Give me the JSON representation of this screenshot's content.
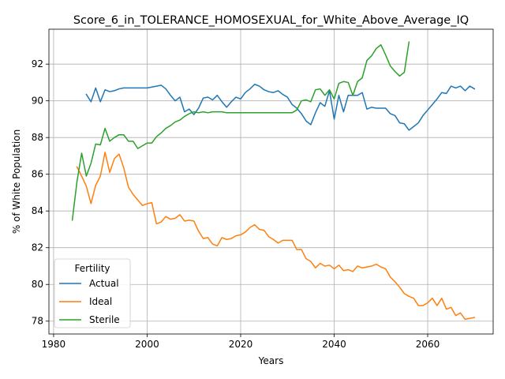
{
  "chart_data": {
    "type": "line",
    "title": "Score_6_in_TOLERANCE_HOMOSEXUAL_for_White_Above_Average_IQ",
    "xlabel": "Years",
    "ylabel": "% of White Population",
    "xlim": [
      1979,
      2074
    ],
    "ylim": [
      77.3,
      93.9
    ],
    "xticks": [
      1980,
      2000,
      2020,
      2040,
      2060
    ],
    "yticks": [
      78,
      80,
      82,
      84,
      86,
      88,
      90,
      92
    ],
    "grid": true,
    "legend": {
      "title": "Fertility",
      "placement": "lower-left"
    },
    "series": [
      {
        "name": "Actual",
        "color": "#1f77b4",
        "points": [
          [
            1987,
            90.35
          ],
          [
            1988,
            89.95
          ],
          [
            1989,
            90.7
          ],
          [
            1990,
            89.95
          ],
          [
            1991,
            90.6
          ],
          [
            1992,
            90.5
          ],
          [
            1993,
            90.55
          ],
          [
            1994,
            90.65
          ],
          [
            1995,
            90.7
          ],
          [
            1996,
            90.7
          ],
          [
            1997,
            90.7
          ],
          [
            1998,
            90.7
          ],
          [
            1999,
            90.7
          ],
          [
            2000,
            90.7
          ],
          [
            2001,
            90.75
          ],
          [
            2002,
            90.8
          ],
          [
            2003,
            90.85
          ],
          [
            2004,
            90.65
          ],
          [
            2005,
            90.3
          ],
          [
            2006,
            90.0
          ],
          [
            2007,
            90.2
          ],
          [
            2008,
            89.4
          ],
          [
            2009,
            89.55
          ],
          [
            2010,
            89.25
          ],
          [
            2011,
            89.6
          ],
          [
            2012,
            90.15
          ],
          [
            2013,
            90.2
          ],
          [
            2014,
            90.05
          ],
          [
            2015,
            90.3
          ],
          [
            2016,
            89.95
          ],
          [
            2017,
            89.65
          ],
          [
            2018,
            89.95
          ],
          [
            2019,
            90.2
          ],
          [
            2020,
            90.1
          ],
          [
            2021,
            90.45
          ],
          [
            2022,
            90.65
          ],
          [
            2023,
            90.9
          ],
          [
            2024,
            90.8
          ],
          [
            2025,
            90.6
          ],
          [
            2026,
            90.5
          ],
          [
            2027,
            90.45
          ],
          [
            2028,
            90.55
          ],
          [
            2029,
            90.35
          ],
          [
            2030,
            90.2
          ],
          [
            2031,
            89.8
          ],
          [
            2032,
            89.6
          ],
          [
            2033,
            89.3
          ],
          [
            2034,
            88.9
          ],
          [
            2035,
            88.7
          ],
          [
            2036,
            89.35
          ],
          [
            2037,
            89.9
          ],
          [
            2038,
            89.7
          ],
          [
            2039,
            90.55
          ],
          [
            2040,
            89.0
          ],
          [
            2041,
            90.3
          ],
          [
            2042,
            89.4
          ],
          [
            2043,
            90.3
          ],
          [
            2044,
            90.3
          ],
          [
            2045,
            90.3
          ],
          [
            2046,
            90.45
          ],
          [
            2047,
            89.55
          ],
          [
            2048,
            89.65
          ],
          [
            2049,
            89.6
          ],
          [
            2050,
            89.6
          ],
          [
            2051,
            89.6
          ],
          [
            2052,
            89.3
          ],
          [
            2053,
            89.2
          ],
          [
            2054,
            88.8
          ],
          [
            2055,
            88.75
          ],
          [
            2056,
            88.4
          ],
          [
            2057,
            88.6
          ],
          [
            2058,
            88.8
          ],
          [
            2059,
            89.2
          ],
          [
            2060,
            89.5
          ],
          [
            2061,
            89.8
          ],
          [
            2062,
            90.1
          ],
          [
            2063,
            90.45
          ],
          [
            2064,
            90.4
          ],
          [
            2065,
            90.8
          ],
          [
            2066,
            90.7
          ],
          [
            2067,
            90.8
          ],
          [
            2068,
            90.55
          ],
          [
            2069,
            90.8
          ],
          [
            2070,
            90.65
          ]
        ]
      },
      {
        "name": "Ideal",
        "color": "#ff7f0e",
        "points": [
          [
            1985,
            86.4
          ],
          [
            1986,
            85.9
          ],
          [
            1987,
            85.35
          ],
          [
            1988,
            84.4
          ],
          [
            1989,
            85.4
          ],
          [
            1990,
            85.9
          ],
          [
            1991,
            87.2
          ],
          [
            1992,
            86.1
          ],
          [
            1993,
            86.85
          ],
          [
            1994,
            87.1
          ],
          [
            1995,
            86.35
          ],
          [
            1996,
            85.3
          ],
          [
            1997,
            84.9
          ],
          [
            1998,
            84.6
          ],
          [
            1999,
            84.3
          ],
          [
            2000,
            84.4
          ],
          [
            2001,
            84.45
          ],
          [
            2002,
            83.3
          ],
          [
            2003,
            83.4
          ],
          [
            2004,
            83.7
          ],
          [
            2005,
            83.55
          ],
          [
            2006,
            83.6
          ],
          [
            2007,
            83.8
          ],
          [
            2008,
            83.45
          ],
          [
            2009,
            83.5
          ],
          [
            2010,
            83.45
          ],
          [
            2011,
            82.9
          ],
          [
            2012,
            82.5
          ],
          [
            2013,
            82.55
          ],
          [
            2014,
            82.2
          ],
          [
            2015,
            82.1
          ],
          [
            2016,
            82.55
          ],
          [
            2017,
            82.45
          ],
          [
            2018,
            82.5
          ],
          [
            2019,
            82.65
          ],
          [
            2020,
            82.7
          ],
          [
            2021,
            82.85
          ],
          [
            2022,
            83.1
          ],
          [
            2023,
            83.25
          ],
          [
            2024,
            83.0
          ],
          [
            2025,
            82.95
          ],
          [
            2026,
            82.6
          ],
          [
            2027,
            82.45
          ],
          [
            2028,
            82.25
          ],
          [
            2029,
            82.4
          ],
          [
            2030,
            82.4
          ],
          [
            2031,
            82.4
          ],
          [
            2032,
            81.9
          ],
          [
            2033,
            81.9
          ],
          [
            2034,
            81.4
          ],
          [
            2035,
            81.25
          ],
          [
            2036,
            80.9
          ],
          [
            2037,
            81.15
          ],
          [
            2038,
            81.0
          ],
          [
            2039,
            81.05
          ],
          [
            2040,
            80.85
          ],
          [
            2041,
            81.05
          ],
          [
            2042,
            80.75
          ],
          [
            2043,
            80.8
          ],
          [
            2044,
            80.7
          ],
          [
            2045,
            81.0
          ],
          [
            2046,
            80.9
          ],
          [
            2047,
            80.95
          ],
          [
            2048,
            81.0
          ],
          [
            2049,
            81.1
          ],
          [
            2050,
            80.95
          ],
          [
            2051,
            80.85
          ],
          [
            2052,
            80.4
          ],
          [
            2053,
            80.15
          ],
          [
            2054,
            79.85
          ],
          [
            2055,
            79.5
          ],
          [
            2056,
            79.35
          ],
          [
            2057,
            79.25
          ],
          [
            2058,
            78.85
          ],
          [
            2059,
            78.85
          ],
          [
            2060,
            79.0
          ],
          [
            2061,
            79.25
          ],
          [
            2062,
            78.85
          ],
          [
            2063,
            79.25
          ],
          [
            2064,
            78.65
          ],
          [
            2065,
            78.75
          ],
          [
            2066,
            78.3
          ],
          [
            2067,
            78.45
          ],
          [
            2068,
            78.1
          ],
          [
            2069,
            78.15
          ],
          [
            2070,
            78.2
          ]
        ]
      },
      {
        "name": "Sterile",
        "color": "#2ca02c",
        "points": [
          [
            1984,
            83.5
          ],
          [
            1985,
            85.6
          ],
          [
            1986,
            87.15
          ],
          [
            1987,
            85.9
          ],
          [
            1988,
            86.6
          ],
          [
            1989,
            87.65
          ],
          [
            1990,
            87.6
          ],
          [
            1991,
            88.5
          ],
          [
            1992,
            87.8
          ],
          [
            1993,
            88.0
          ],
          [
            1994,
            88.15
          ],
          [
            1995,
            88.15
          ],
          [
            1996,
            87.8
          ],
          [
            1997,
            87.8
          ],
          [
            1998,
            87.4
          ],
          [
            1999,
            87.55
          ],
          [
            2000,
            87.7
          ],
          [
            2001,
            87.7
          ],
          [
            2002,
            88.05
          ],
          [
            2003,
            88.25
          ],
          [
            2004,
            88.5
          ],
          [
            2005,
            88.65
          ],
          [
            2006,
            88.85
          ],
          [
            2007,
            88.95
          ],
          [
            2008,
            89.15
          ],
          [
            2009,
            89.3
          ],
          [
            2010,
            89.4
          ],
          [
            2011,
            89.35
          ],
          [
            2012,
            89.4
          ],
          [
            2013,
            89.35
          ],
          [
            2014,
            89.4
          ],
          [
            2015,
            89.4
          ],
          [
            2016,
            89.4
          ],
          [
            2017,
            89.35
          ],
          [
            2018,
            89.35
          ],
          [
            2019,
            89.35
          ],
          [
            2020,
            89.35
          ],
          [
            2021,
            89.35
          ],
          [
            2022,
            89.35
          ],
          [
            2023,
            89.35
          ],
          [
            2024,
            89.35
          ],
          [
            2025,
            89.35
          ],
          [
            2026,
            89.35
          ],
          [
            2027,
            89.35
          ],
          [
            2028,
            89.35
          ],
          [
            2029,
            89.35
          ],
          [
            2030,
            89.35
          ],
          [
            2031,
            89.35
          ],
          [
            2032,
            89.5
          ],
          [
            2033,
            90.0
          ],
          [
            2034,
            90.05
          ],
          [
            2035,
            89.95
          ],
          [
            2036,
            90.6
          ],
          [
            2037,
            90.65
          ],
          [
            2038,
            90.3
          ],
          [
            2039,
            90.6
          ],
          [
            2040,
            90.1
          ],
          [
            2041,
            90.95
          ],
          [
            2042,
            91.05
          ],
          [
            2043,
            91.0
          ],
          [
            2044,
            90.3
          ],
          [
            2045,
            91.05
          ],
          [
            2046,
            91.25
          ],
          [
            2047,
            92.2
          ],
          [
            2048,
            92.45
          ],
          [
            2049,
            92.85
          ],
          [
            2050,
            93.05
          ],
          [
            2051,
            92.5
          ],
          [
            2052,
            91.9
          ],
          [
            2053,
            91.6
          ],
          [
            2054,
            91.35
          ],
          [
            2055,
            91.55
          ],
          [
            2056,
            93.2
          ]
        ]
      }
    ]
  }
}
